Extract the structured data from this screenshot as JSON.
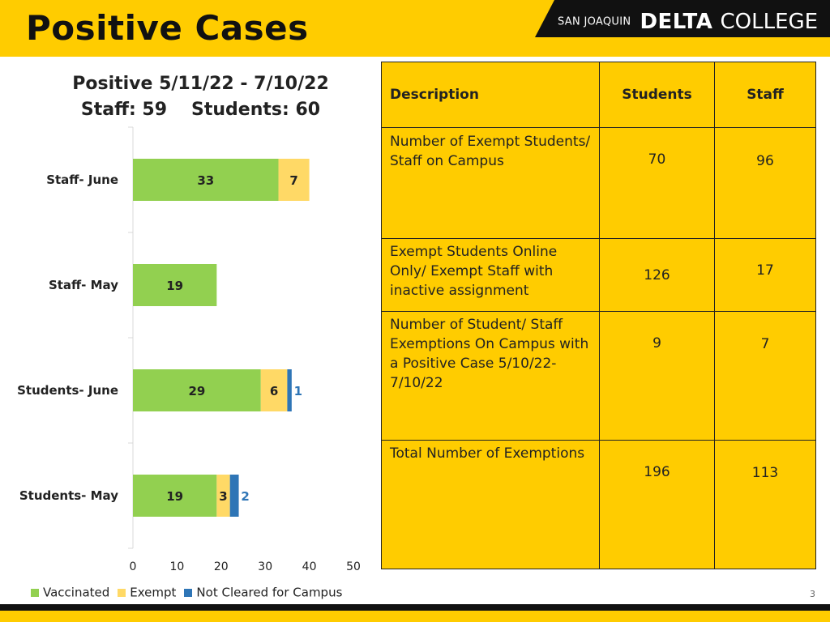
{
  "header": {
    "title": "Positive Cases",
    "logo": {
      "small": "SAN JOAQUIN",
      "delta": "DELTA",
      "college": "COLLEGE"
    }
  },
  "chart_title": {
    "line1": "Positive 5/11/22 - 7/10/22",
    "staff": "Staff: 59",
    "students": "Students: 60"
  },
  "chart_data": {
    "type": "bar",
    "orientation": "horizontal",
    "stacked": true,
    "title": "Positive 5/11/22 - 7/10/22",
    "subtitle": "Staff: 59     Students: 60",
    "categories": [
      "Staff- June",
      "Staff- May",
      "Students- June",
      "Students- May"
    ],
    "series": [
      {
        "name": "Vaccinated",
        "color": "#92d050",
        "values": [
          33,
          19,
          29,
          19
        ],
        "labels": [
          "33",
          "19",
          "29",
          "19"
        ]
      },
      {
        "name": "Exempt",
        "color": "#ffd966",
        "values": [
          7,
          0,
          6,
          3
        ],
        "labels": [
          "7",
          "",
          "6",
          "3"
        ]
      },
      {
        "name": "Not Cleared for Campus",
        "color": "#2e75b6",
        "values": [
          0,
          0,
          1,
          2
        ],
        "labels": [
          "",
          "",
          "1",
          "2"
        ]
      }
    ],
    "xlim": [
      0,
      50
    ],
    "xticks": [
      "0",
      "10",
      "20",
      "30",
      "40",
      "50"
    ],
    "legend_position": "bottom",
    "grid": false
  },
  "legend": {
    "items": [
      {
        "label": "Vaccinated",
        "color": "#92d050"
      },
      {
        "label": "Exempt",
        "color": "#ffd966"
      },
      {
        "label": "Not Cleared for Campus",
        "color": "#2e75b6"
      }
    ]
  },
  "table": {
    "headers": {
      "description": "Description",
      "students": "Students",
      "staff": "Staff"
    },
    "rows": [
      {
        "description": "Number of Exempt Students/ Staff on Campus",
        "students": "70",
        "staff": "96"
      },
      {
        "description": "Exempt Students Online Only/ Exempt Staff with inactive assignment",
        "students": "126",
        "staff": "17"
      },
      {
        "description": "Number of Student/ Staff Exemptions On Campus with a Positive Case 5/10/22-7/10/22",
        "students": "9",
        "staff": "7"
      },
      {
        "description": "Total Number of  Exemptions",
        "students": "196",
        "staff": "113"
      }
    ]
  },
  "page_number": "3",
  "colors": {
    "gold": "#ffcc00",
    "black": "#111111"
  }
}
